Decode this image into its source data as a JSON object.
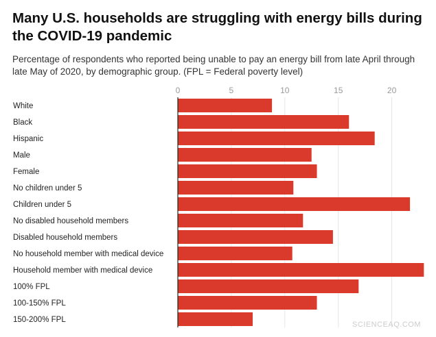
{
  "chart_data": {
    "type": "bar",
    "orientation": "horizontal",
    "title": "Many U.S. households are struggling with energy bills during the COVID-19 pandemic",
    "subtitle": "Percentage of respondents who reported being unable to pay an energy bill from late April through late May of 2020, by demographic group. (FPL = Federal poverty level)",
    "categories": [
      "White",
      "Black",
      "Hispanic",
      "Male",
      "Female",
      "No children under 5",
      "Children under 5",
      "No disabled household members",
      "Disabled household members",
      "No household member with medical device",
      "Household member with medical device",
      "100% FPL",
      "100-150% FPL",
      "150-200% FPL"
    ],
    "values": [
      8.8,
      16.0,
      18.4,
      12.5,
      13.0,
      10.8,
      21.7,
      11.7,
      14.5,
      10.7,
      23.0,
      16.9,
      13.0,
      7.0
    ],
    "xlim": [
      0,
      23
    ],
    "xticks": [
      0,
      5,
      10,
      15,
      20
    ],
    "xaxis_position": "top",
    "grid": true,
    "bar_color": "#d93a2b"
  },
  "watermark": "SCIENCEAQ.COM"
}
